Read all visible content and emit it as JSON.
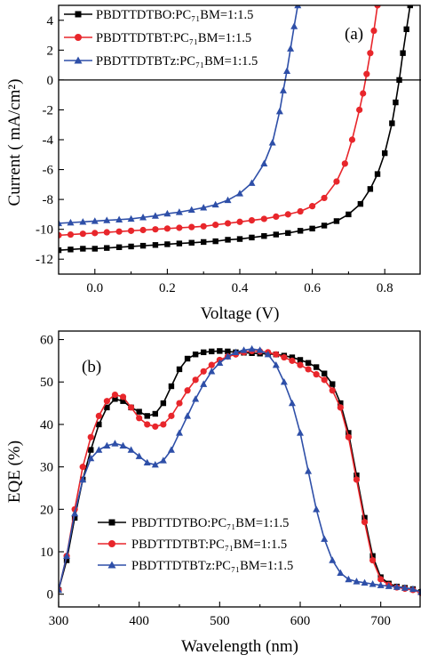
{
  "chart_data": [
    {
      "type": "line",
      "panel_label": "(a)",
      "xlabel": "Voltage (V)",
      "ylabel": "Current ( mA/cm²)",
      "xlim": [
        -0.1,
        0.9
      ],
      "ylim": [
        -13,
        5
      ],
      "xticks": [
        0.0,
        0.2,
        0.4,
        0.6,
        0.8
      ],
      "xtick_labels": [
        "0.0",
        "0.2",
        "0.4",
        "0.6",
        "0.8"
      ],
      "yticks": [
        -12,
        -10,
        -8,
        -6,
        -4,
        -2,
        0,
        2,
        4
      ],
      "ytick_labels": [
        "-12",
        "-10",
        "-8",
        "-6",
        "-4",
        "-2",
        "0",
        "2",
        "4"
      ],
      "zero_line": true,
      "legend_position": "top-left",
      "series": [
        {
          "name": "PBDTTDTBO:PC₇₁BM=1:1.5",
          "color": "#000000",
          "marker": "square",
          "x": [
            -0.1,
            -0.067,
            -0.033,
            0.0,
            0.033,
            0.067,
            0.1,
            0.133,
            0.167,
            0.2,
            0.233,
            0.267,
            0.3,
            0.333,
            0.367,
            0.4,
            0.433,
            0.467,
            0.5,
            0.533,
            0.567,
            0.6,
            0.633,
            0.667,
            0.7,
            0.733,
            0.76,
            0.78,
            0.8,
            0.82,
            0.83,
            0.84,
            0.85,
            0.86,
            0.87
          ],
          "y": [
            -11.4,
            -11.35,
            -11.3,
            -11.3,
            -11.25,
            -11.2,
            -11.15,
            -11.1,
            -11.05,
            -11.0,
            -10.95,
            -10.9,
            -10.85,
            -10.8,
            -10.7,
            -10.65,
            -10.55,
            -10.45,
            -10.35,
            -10.25,
            -10.1,
            -9.95,
            -9.75,
            -9.45,
            -9.0,
            -8.3,
            -7.3,
            -6.3,
            -4.9,
            -2.9,
            -1.5,
            0.0,
            1.8,
            3.4,
            5.0
          ]
        },
        {
          "name": "PBDTTDTBT:PC₇₁BM=1:1.5",
          "color": "#e8262b",
          "marker": "circle",
          "x": [
            -0.1,
            -0.067,
            -0.033,
            0.0,
            0.033,
            0.067,
            0.1,
            0.133,
            0.167,
            0.2,
            0.233,
            0.267,
            0.3,
            0.333,
            0.367,
            0.4,
            0.433,
            0.467,
            0.5,
            0.533,
            0.567,
            0.6,
            0.633,
            0.667,
            0.69,
            0.71,
            0.73,
            0.74,
            0.75,
            0.76,
            0.77,
            0.78
          ],
          "y": [
            -10.4,
            -10.35,
            -10.3,
            -10.25,
            -10.2,
            -10.15,
            -10.1,
            -10.05,
            -10.0,
            -9.95,
            -9.9,
            -9.85,
            -9.8,
            -9.7,
            -9.6,
            -9.5,
            -9.4,
            -9.3,
            -9.15,
            -9.0,
            -8.8,
            -8.45,
            -7.9,
            -6.8,
            -5.6,
            -4.0,
            -2.0,
            -0.9,
            0.4,
            1.8,
            3.3,
            5.0
          ]
        },
        {
          "name": "PBDTTDTBTz:PC₇₁BM=1:1.5",
          "color": "#2e4fa8",
          "marker": "triangle",
          "x": [
            -0.1,
            -0.067,
            -0.033,
            0.0,
            0.033,
            0.067,
            0.1,
            0.133,
            0.167,
            0.2,
            0.233,
            0.267,
            0.3,
            0.333,
            0.367,
            0.4,
            0.433,
            0.467,
            0.49,
            0.51,
            0.52,
            0.53,
            0.54,
            0.55,
            0.56
          ],
          "y": [
            -9.6,
            -9.55,
            -9.5,
            -9.45,
            -9.4,
            -9.35,
            -9.3,
            -9.2,
            -9.1,
            -8.95,
            -8.85,
            -8.7,
            -8.55,
            -8.35,
            -8.05,
            -7.6,
            -6.9,
            -5.6,
            -4.2,
            -2.1,
            -0.7,
            0.6,
            2.1,
            3.6,
            5.0
          ]
        }
      ]
    },
    {
      "type": "line",
      "panel_label": "(b)",
      "xlabel": "Wavelength (nm)",
      "ylabel": "EQE (%)",
      "xlim": [
        300,
        750
      ],
      "ylim": [
        -3,
        62
      ],
      "xticks": [
        300,
        400,
        500,
        600,
        700
      ],
      "xtick_labels": [
        "300",
        "400",
        "500",
        "600",
        "700"
      ],
      "yticks": [
        0,
        10,
        20,
        30,
        40,
        50,
        60
      ],
      "ytick_labels": [
        "0",
        "10",
        "20",
        "30",
        "40",
        "50",
        "60"
      ],
      "legend_position": "bottom-center",
      "series": [
        {
          "name": "PBDTTDTBO:PC₇₁BM=1:1.5",
          "color": "#000000",
          "marker": "square",
          "x": [
            300,
            310,
            320,
            330,
            340,
            350,
            360,
            370,
            380,
            390,
            400,
            410,
            420,
            430,
            440,
            450,
            460,
            470,
            480,
            490,
            500,
            510,
            520,
            530,
            540,
            550,
            560,
            570,
            580,
            590,
            600,
            610,
            620,
            630,
            640,
            650,
            660,
            670,
            680,
            690,
            700,
            710,
            720,
            730,
            740,
            750
          ],
          "y": [
            1,
            8,
            18,
            27,
            34,
            40,
            44,
            46,
            45.5,
            44,
            43,
            42,
            42.5,
            45,
            49,
            53,
            55.5,
            56.5,
            57,
            57.2,
            57.3,
            57.2,
            57,
            56.9,
            56.8,
            56.7,
            56.6,
            56.5,
            56.2,
            55.8,
            55.2,
            54.5,
            53.5,
            52,
            49.5,
            45,
            38,
            28,
            18,
            9,
            4,
            2.5,
            1.8,
            1.5,
            1.2,
            0.5
          ]
        },
        {
          "name": "PBDTTDTBT:PC₇₁BM=1:1.5",
          "color": "#e8262b",
          "marker": "circle",
          "x": [
            300,
            310,
            320,
            330,
            340,
            350,
            360,
            370,
            380,
            390,
            400,
            410,
            420,
            430,
            440,
            450,
            460,
            470,
            480,
            490,
            500,
            510,
            520,
            530,
            540,
            550,
            560,
            570,
            580,
            590,
            600,
            610,
            620,
            630,
            640,
            650,
            660,
            670,
            680,
            690,
            700,
            710,
            720,
            730,
            740,
            750
          ],
          "y": [
            1,
            9,
            20,
            30,
            37,
            42,
            45.5,
            47,
            46.5,
            44,
            41.5,
            40,
            39.5,
            40,
            42,
            45,
            48,
            50.5,
            52.5,
            54,
            55.2,
            56,
            56.5,
            57,
            57.3,
            57.2,
            57,
            56.5,
            55.8,
            55,
            54,
            53,
            51.8,
            50.5,
            48,
            44,
            37,
            27,
            17,
            8,
            3.5,
            2.2,
            1.6,
            1.3,
            1.0,
            0.3
          ]
        },
        {
          "name": "PBDTTDTBTz:PC₇₁BM=1:1.5",
          "color": "#2e4fa8",
          "marker": "triangle",
          "x": [
            300,
            310,
            320,
            330,
            340,
            350,
            360,
            370,
            380,
            390,
            400,
            410,
            420,
            430,
            440,
            450,
            460,
            470,
            480,
            490,
            500,
            510,
            520,
            530,
            540,
            550,
            560,
            570,
            580,
            590,
            600,
            610,
            620,
            630,
            640,
            650,
            660,
            670,
            680,
            690,
            700,
            710,
            720,
            730,
            740,
            750
          ],
          "y": [
            1,
            9,
            19,
            27,
            32,
            34,
            35,
            35.5,
            35,
            34,
            32.5,
            31,
            30.5,
            31.5,
            34,
            38,
            42,
            46,
            49.5,
            52.5,
            54.5,
            56,
            57,
            57.5,
            57.8,
            57.5,
            56.5,
            54,
            50,
            45,
            38,
            29,
            20,
            13,
            8,
            5,
            3.5,
            3,
            2.7,
            2.4,
            2.1,
            1.9,
            1.7,
            1.5,
            1.2,
            0.5
          ]
        }
      ]
    }
  ]
}
